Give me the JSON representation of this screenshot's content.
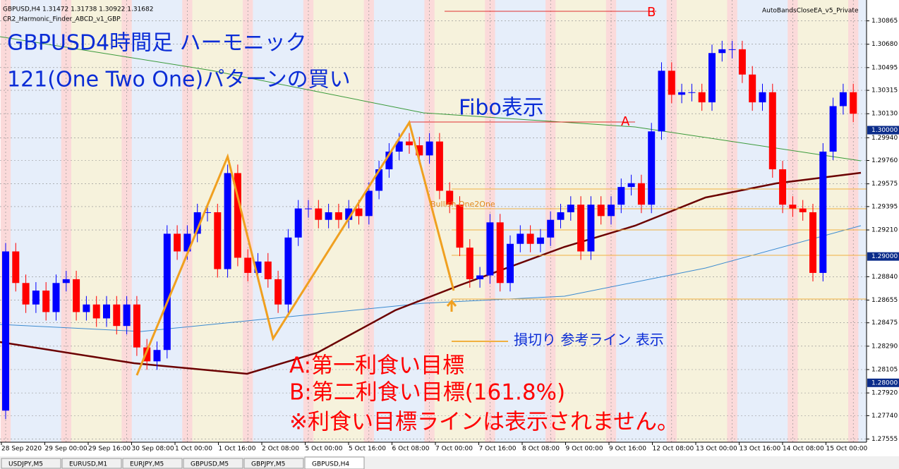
{
  "header": {
    "symbol_info": "GBPUSD,H4  1.31472 1.31738 1.30922 1.31682",
    "indicator": "CR2_Harmonic_Finder_ABCD_v1_GBP",
    "ea": "AutoBandsCloseEA_v5_Private"
  },
  "annotations": {
    "title_line1": "GBPUSD4時間足 ハーモニック",
    "title_line2": "121(One Two One)パターンの買い",
    "fibo": "Fibo表示",
    "stop": "損切り 参考ライン 表示",
    "target_a": "A:第一利食い目標",
    "target_b": "B:第二利食い目標(161.8%)",
    "note": "※利食い目標ラインは表示されません。",
    "pattern_name": "Bullish One2One",
    "label_a": "A",
    "label_b": "B"
  },
  "chart_data": {
    "type": "candlestick",
    "up_color": "#0000ff",
    "down_color": "#ff0000",
    "first_open": 1.2778,
    "close": [
      1.2904,
      1.2879,
      1.2862,
      1.2873,
      1.2856,
      1.2879,
      1.2882,
      1.2856,
      1.2862,
      1.2851,
      1.2862,
      1.2845,
      1.2862,
      1.2828,
      1.2817,
      1.2826,
      1.2918,
      1.2904,
      1.2918,
      1.2935,
      1.2935,
      1.289,
      1.2966,
      1.2899,
      1.2887,
      1.2896,
      1.2882,
      1.2862,
      1.2915,
      1.2938,
      1.2938,
      1.2929,
      1.2935,
      1.2929,
      1.2938,
      1.2932,
      1.2952,
      1.2969,
      1.2983,
      1.2991,
      1.2988,
      1.298,
      1.2991,
      1.2952,
      1.2941,
      1.2907,
      1.2882,
      1.2885,
      1.2927,
      1.2879,
      1.291,
      1.2918,
      1.291,
      1.2915,
      1.2929,
      1.2935,
      1.2941,
      1.2904,
      1.2941,
      1.2932,
      1.2941,
      1.2955,
      1.2958,
      1.2941,
      1.2999,
      1.3047,
      1.3028,
      1.303,
      1.303,
      1.3022,
      1.3061,
      1.3064,
      1.3064,
      1.3044,
      1.3022,
      1.303,
      1.2969,
      1.2941,
      1.2938,
      1.2935,
      1.2887,
      1.2983,
      1.3019,
      1.303,
      1.3013
    ],
    "pattern": {
      "color": "#f0a020",
      "index": [
        13,
        22,
        26.5,
        40,
        44.4
      ],
      "price": [
        1.2806,
        1.2979,
        1.2835,
        1.3006,
        1.2873
      ]
    },
    "ylim": [
      1.2753,
      1.3103
    ],
    "yticks": [
      1.30865,
      {
        "value": 1.3068,
        "label": "1.30680"
      },
      1.30495,
      1.30315,
      {
        "value": 1.3013,
        "label": "1.30130"
      },
      {
        "value": 1.2994,
        "label": "1.29940"
      },
      {
        "value": 1.2976,
        "label": "1.29760"
      },
      1.29575,
      1.29395,
      {
        "value": 1.2921,
        "label": "1.29210"
      },
      {
        "value": 1.2884,
        "label": "1.28840"
      },
      1.28655,
      1.28475,
      {
        "value": 1.2829,
        "label": "1.28290"
      },
      1.28105,
      {
        "value": 1.2792,
        "label": "1.27920"
      },
      {
        "value": 1.2774,
        "label": "1.27740"
      },
      1.27555
    ],
    "price_boxes": [
      {
        "value": 1.3,
        "label": "1.30000"
      },
      {
        "value": 1.29,
        "label": "1.29000"
      },
      {
        "value": 1.28,
        "label": "1.28000"
      }
    ],
    "x_labels": [
      "28 Sep 2020",
      "29 Sep 00:00",
      "29 Sep 16:00",
      "30 Sep 08:00",
      "1 Oct 00:00",
      "1 Oct 16:00",
      "2 Oct 08:00",
      "5 Oct 00:00",
      "5 Oct 16:00",
      "6 Oct 08:00",
      "7 Oct 00:00",
      "7 Oct 16:00",
      "8 Oct 08:00",
      "9 Oct 00:00",
      "9 Oct 16:00",
      "12 Oct 08:00",
      "13 Oct 00:00",
      "13 Oct 16:00",
      "14 Oct 08:00",
      "15 Oct 00:00"
    ]
  },
  "tabs": [
    "USDJPY,M5",
    "EURUSD,M1",
    "EURJPY,M5",
    "GBPUSD,M5",
    "GBPJPY,M5",
    "GBPUSD,H4"
  ]
}
